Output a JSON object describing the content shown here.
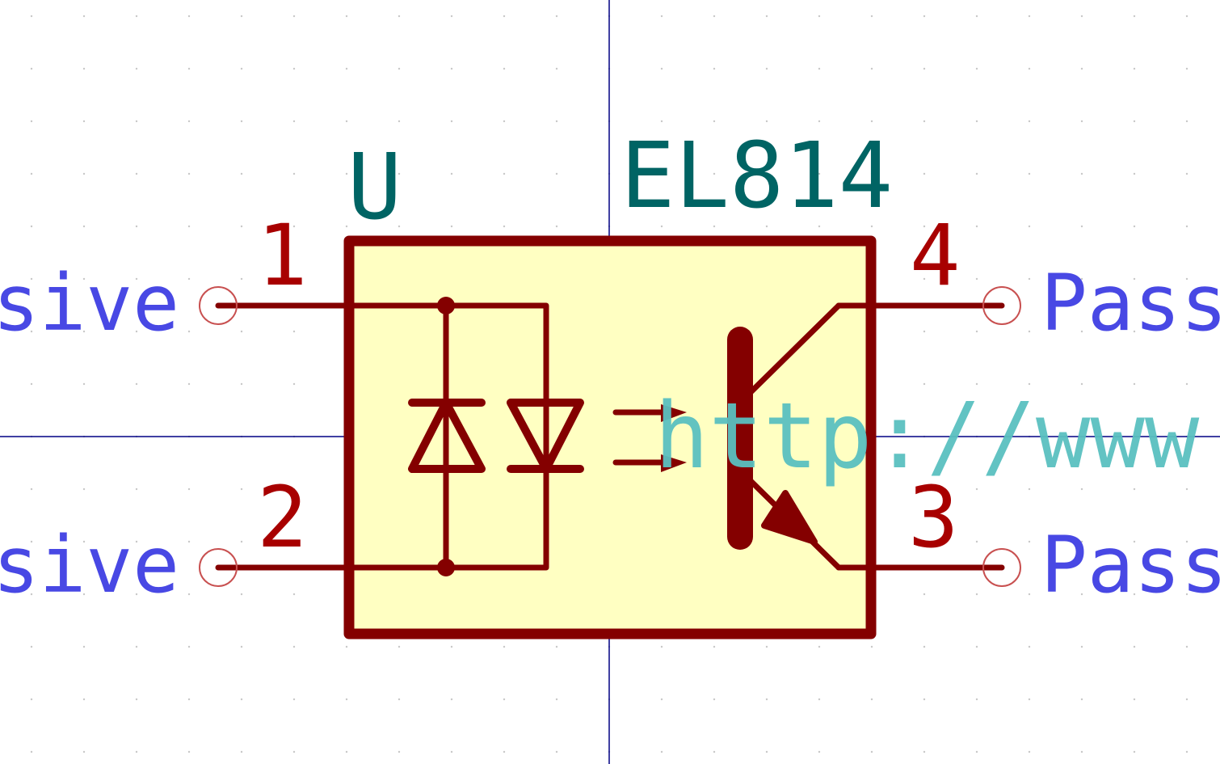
{
  "symbol": {
    "reference": "U",
    "value": "EL814",
    "datasheet_url": "http://www"
  },
  "pins": [
    {
      "number": "1",
      "type": "Passive",
      "side": "left"
    },
    {
      "number": "2",
      "type": "Passive",
      "side": "left"
    },
    {
      "number": "4",
      "type": "Passive",
      "side": "right"
    },
    {
      "number": "3",
      "type": "Passive",
      "side": "right"
    }
  ],
  "colors": {
    "body_outline": "#840000",
    "body_fill": "#ffffc2",
    "pin_number": "#a80000",
    "pin_type": "#4848e4",
    "reference": "#006464",
    "field": "#5ac0c0",
    "axis": "#000084",
    "pin_end": "#c85050"
  }
}
